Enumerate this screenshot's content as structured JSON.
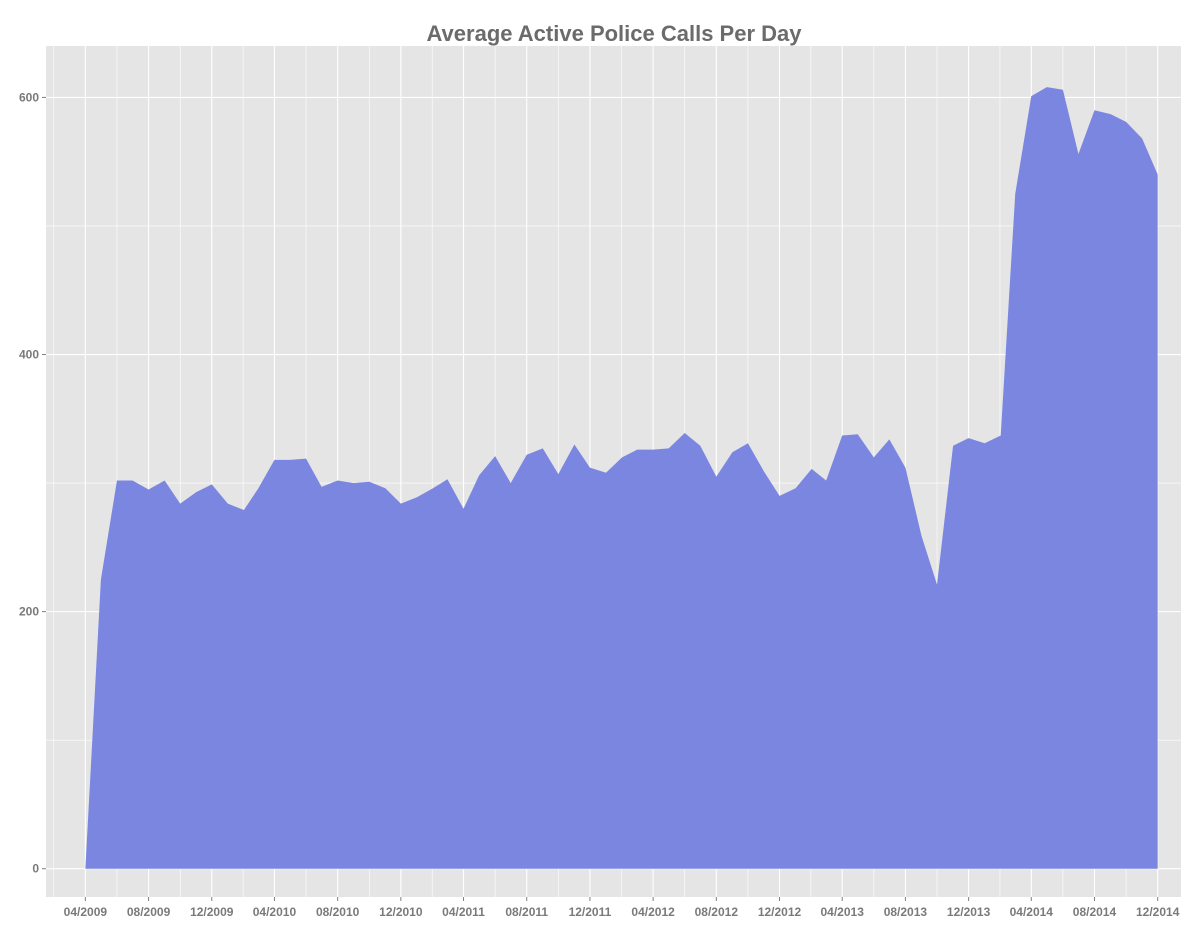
{
  "chart_data": {
    "type": "area",
    "title": "Average Active Police Calls Per Day",
    "xlabel": "",
    "ylabel": "",
    "fill_color": "#7b86e1",
    "panel_color": "#e5e5e5",
    "grid_color": "#ffffff",
    "grid": true,
    "legend": "none",
    "ylim": [
      -22,
      640
    ],
    "xlim": [
      "2009-01-15",
      "2015-01-15"
    ],
    "y_ticks": [
      0,
      200,
      400,
      600
    ],
    "y_tick_labels": [
      "0",
      "200",
      "400",
      "600"
    ],
    "x_ticks": [
      "2009-04-01",
      "2009-08-01",
      "2009-12-01",
      "2010-04-01",
      "2010-08-01",
      "2010-12-01",
      "2011-04-01",
      "2011-08-01",
      "2011-12-01",
      "2012-04-01",
      "2012-08-01",
      "2012-12-01",
      "2013-04-01",
      "2013-08-01",
      "2013-12-01",
      "2014-04-01",
      "2014-08-01",
      "2014-12-01"
    ],
    "x_tick_labels": [
      "04/2009",
      "08/2009",
      "12/2009",
      "04/2010",
      "08/2010",
      "12/2010",
      "04/2011",
      "08/2011",
      "12/2011",
      "04/2012",
      "08/2012",
      "12/2012",
      "04/2013",
      "08/2013",
      "12/2013",
      "04/2014",
      "08/2014",
      "12/2014"
    ],
    "series": [
      {
        "x": [
          "2009-04-01",
          "2009-05-01",
          "2009-06-01",
          "2009-07-01",
          "2009-08-01",
          "2009-09-01",
          "2009-10-01",
          "2009-11-01",
          "2009-12-01",
          "2010-01-01",
          "2010-02-01",
          "2010-03-01",
          "2010-04-01",
          "2010-05-01",
          "2010-06-01",
          "2010-07-01",
          "2010-08-01",
          "2010-09-01",
          "2010-10-01",
          "2010-11-01",
          "2010-12-01",
          "2011-01-01",
          "2011-02-01",
          "2011-03-01",
          "2011-04-01",
          "2011-05-01",
          "2011-06-01",
          "2011-07-01",
          "2011-08-01",
          "2011-09-01",
          "2011-10-01",
          "2011-11-01",
          "2011-12-01",
          "2012-01-01",
          "2012-02-01",
          "2012-03-01",
          "2012-04-01",
          "2012-05-01",
          "2012-06-01",
          "2012-07-01",
          "2012-08-01",
          "2012-09-01",
          "2012-10-01",
          "2012-11-01",
          "2012-12-01",
          "2013-01-01",
          "2013-02-01",
          "2013-03-01",
          "2013-04-01",
          "2013-05-01",
          "2013-06-01",
          "2013-07-01",
          "2013-08-01",
          "2013-09-01",
          "2013-10-01",
          "2013-11-01",
          "2013-12-01",
          "2014-01-01",
          "2014-02-01",
          "2014-03-01",
          "2014-04-01",
          "2014-05-01",
          "2014-06-01",
          "2014-07-01",
          "2014-08-01",
          "2014-09-01",
          "2014-10-01",
          "2014-11-01",
          "2014-12-01"
        ],
        "values": [
          0,
          225,
          302,
          302,
          295,
          302,
          284,
          293,
          299,
          284,
          279,
          296,
          318,
          318,
          319,
          297,
          302,
          300,
          301,
          296,
          284,
          289,
          296,
          303,
          280,
          306,
          321,
          300,
          322,
          327,
          307,
          330,
          312,
          308,
          320,
          326,
          326,
          327,
          339,
          329,
          305,
          324,
          331,
          309,
          290,
          296,
          311,
          302,
          337,
          338,
          320,
          334,
          312,
          259,
          221,
          329,
          335,
          331,
          337,
          525,
          601,
          608,
          606,
          556,
          590,
          587,
          581,
          568,
          540
        ]
      }
    ]
  }
}
